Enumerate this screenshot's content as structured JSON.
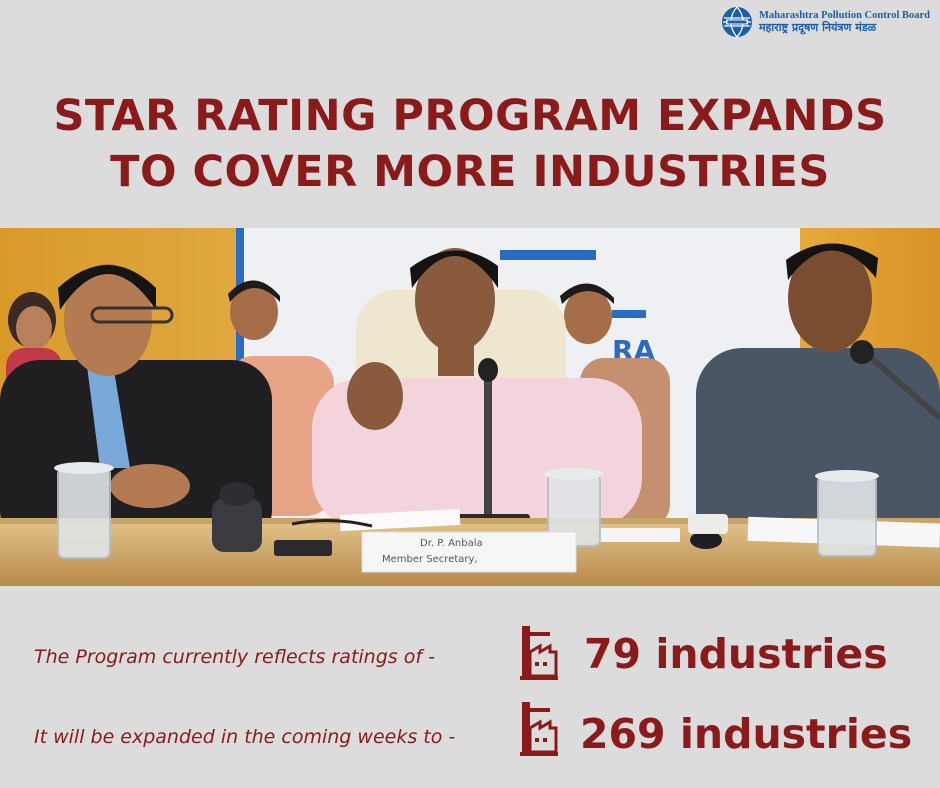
{
  "logo": {
    "name_en": "Maharashtra Pollution Control Board",
    "name_mr": "महाराष्ट्र प्रदूषण नियंत्रण मंडळ",
    "colors": {
      "primary": "#1c5fa8"
    }
  },
  "headline": {
    "line1": "STAR RATING PROGRAM EXPANDS",
    "line2": "TO COVER MORE INDUSTRIES"
  },
  "photo": {
    "nameplate_line1": "Dr. P. Anbala",
    "nameplate_line2": "Member Secretary,",
    "backdrop_text": "RA"
  },
  "stats": [
    {
      "label": "The Program currently reflects ratings of -",
      "icon": "factory-icon",
      "value": "79 industries"
    },
    {
      "label": "It will be expanded in the coming weeks to -",
      "icon": "factory-icon",
      "value": "269 industries"
    }
  ],
  "colors": {
    "accent": "#8b1a1a",
    "background": "#dcdcdc"
  }
}
